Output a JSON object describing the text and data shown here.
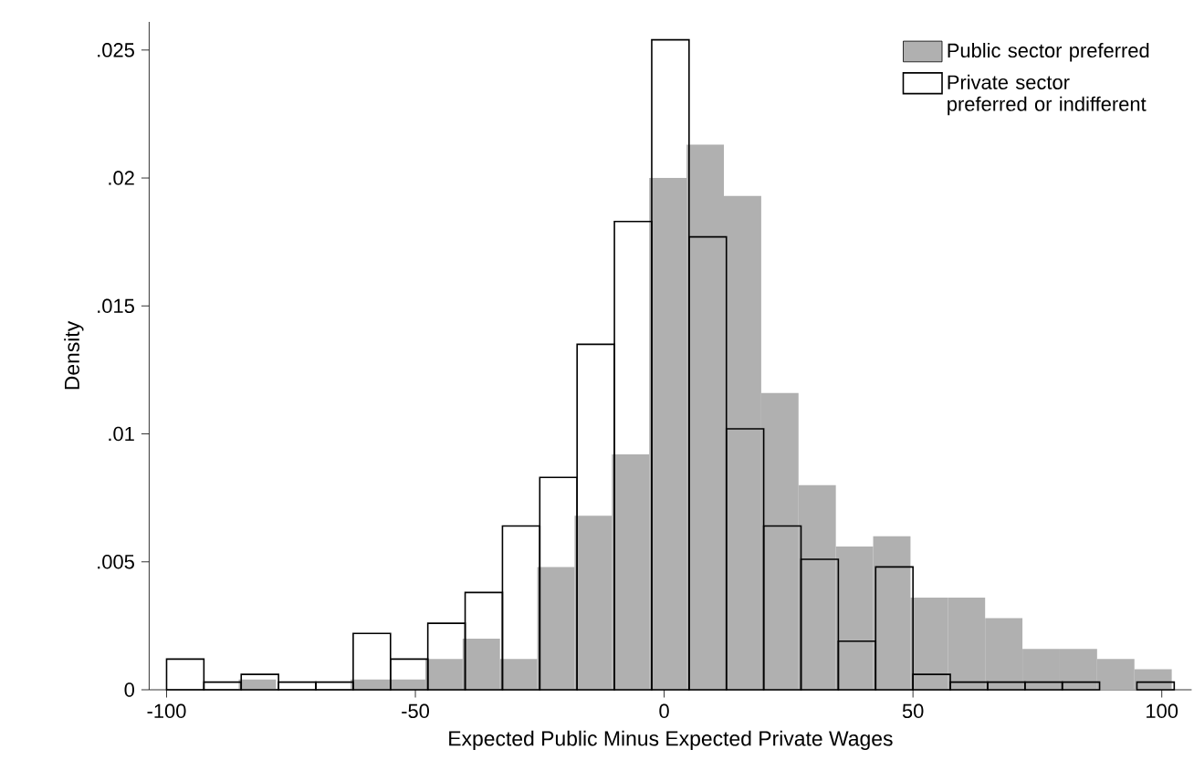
{
  "chart_data": {
    "type": "bar",
    "xlabel": "Expected Public Minus Expected Private Wages",
    "ylabel": "Density",
    "xlim": [
      -103.5,
      106
    ],
    "ylim": [
      0,
      0.0261
    ],
    "xticks": [
      -100,
      -50,
      0,
      50,
      100
    ],
    "yticks": [
      {
        "value": 0,
        "label": "0"
      },
      {
        "value": 0.005,
        "label": ".005"
      },
      {
        "value": 0.01,
        "label": ".01"
      },
      {
        "value": 0.015,
        "label": ".015"
      },
      {
        "value": 0.02,
        "label": ".02"
      },
      {
        "value": 0.025,
        "label": ".025"
      }
    ],
    "legend": "top right",
    "series": [
      {
        "name": "Public sector preferred",
        "color": "#b0b0b0",
        "x": [
          -81.75,
          -74.25,
          -66.75,
          -59.25,
          -51.75,
          -44.25,
          -36.75,
          -29.25,
          -21.75,
          -14.25,
          -6.75,
          0.75,
          8.25,
          15.75,
          23.25,
          30.75,
          38.25,
          45.75,
          53.25,
          60.75,
          68.25,
          75.75,
          83.25,
          90.75,
          98.25
        ],
        "values": [
          0.0004,
          0,
          0,
          0.0004,
          0.0004,
          0.0012,
          0.002,
          0.0012,
          0.0048,
          0.0068,
          0.0092,
          0.02,
          0.0213,
          0.0193,
          0.0116,
          0.008,
          0.0056,
          0.006,
          0.0036,
          0.0036,
          0.0028,
          0.0016,
          0.0016,
          0.0012,
          0.0008
        ]
      },
      {
        "name": "Private sector preferred or indifferent",
        "color": "#000000",
        "x": [
          -96.25,
          -88.75,
          -81.25,
          -73.75,
          -66.25,
          -58.75,
          -51.25,
          -43.75,
          -36.25,
          -28.75,
          -21.25,
          -13.75,
          -6.25,
          1.25,
          8.75,
          16.25,
          23.75,
          31.25,
          38.75,
          46.25,
          53.75,
          61.25,
          68.75,
          76.25,
          83.75,
          91.25,
          98.75
        ],
        "values": [
          0.0012,
          0.0003,
          0.0006,
          0.0003,
          0.0003,
          0.0022,
          0.0012,
          0.0026,
          0.0038,
          0.0064,
          0.0083,
          0.0135,
          0.0183,
          0.0254,
          0.0177,
          0.0102,
          0.0064,
          0.0051,
          0.0019,
          0.0048,
          0.0006,
          0.0003,
          0.0003,
          0.0003,
          0.0003,
          0,
          0.0003
        ]
      }
    ]
  }
}
